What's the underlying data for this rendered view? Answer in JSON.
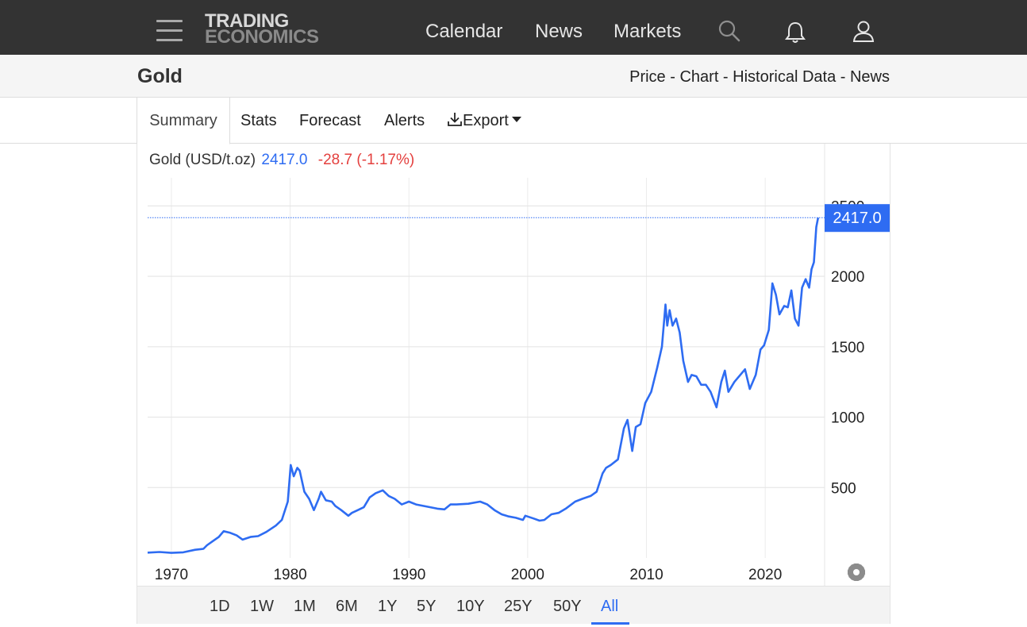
{
  "header": {
    "logo_line1": "TRADING",
    "logo_line2": "ECONOMICS",
    "nav": [
      "Calendar",
      "News",
      "Markets"
    ],
    "icons": [
      "search-icon",
      "bell-icon",
      "user-icon"
    ]
  },
  "titlebar": {
    "title": "Gold",
    "breadcrumbs": [
      "Price",
      "Chart",
      "Historical Data",
      "News"
    ],
    "separator": " - "
  },
  "tabs": [
    "Summary",
    "Stats",
    "Forecast",
    "Alerts",
    "Export"
  ],
  "legend": {
    "name": "Gold (USD/t.oz)",
    "price": "2417.0",
    "change": "-28.7 (-1.17%)"
  },
  "colors": {
    "line": "#2e6cf2",
    "negative": "#e4403e",
    "topbar": "#333333"
  },
  "range_buttons": [
    "1D",
    "1W",
    "1M",
    "6M",
    "1Y",
    "5Y",
    "10Y",
    "25Y",
    "50Y",
    "All"
  ],
  "range_selected": "All",
  "chart_data": {
    "type": "line",
    "title": "",
    "xlabel": "",
    "ylabel": "",
    "xlim": [
      1968,
      2025
    ],
    "ylim": [
      0,
      2700
    ],
    "xticks": [
      1970,
      1980,
      1990,
      2000,
      2010,
      2020
    ],
    "yticks": [
      500,
      1000,
      1500,
      2000,
      2500
    ],
    "last_value": "2417.0",
    "last_value_number": 2417.0,
    "grid": true,
    "series": [
      {
        "x": [
          1968.0,
          1969.0,
          1970.0,
          1971.0,
          1972.0,
          1972.7,
          1973.0,
          1973.5,
          1974.0,
          1974.4,
          1974.9,
          1975.5,
          1976.0,
          1976.7,
          1977.3,
          1978.0,
          1978.8,
          1979.3,
          1979.8,
          1980.05,
          1980.3,
          1980.6,
          1980.8,
          1981.2,
          1981.6,
          1982.0,
          1982.4,
          1982.6,
          1983.0,
          1983.5,
          1983.8,
          1984.3,
          1984.9,
          1985.2,
          1985.7,
          1986.2,
          1986.7,
          1987.2,
          1987.8,
          1988.3,
          1988.8,
          1989.4,
          1990.0,
          1990.6,
          1991.2,
          1991.8,
          1992.4,
          1993.0,
          1993.5,
          1994.0,
          1995.0,
          1996.0,
          1996.6,
          1997.2,
          1997.8,
          1998.4,
          1999.0,
          1999.6,
          1999.8,
          2000.5,
          2001.0,
          2001.4,
          2002.0,
          2002.6,
          2003.2,
          2004.0,
          2004.6,
          2005.3,
          2005.8,
          2006.3,
          2006.6,
          2007.0,
          2007.6,
          2008.1,
          2008.4,
          2008.8,
          2009.1,
          2009.5,
          2009.9,
          2010.4,
          2010.9,
          2011.3,
          2011.6,
          2011.75,
          2011.95,
          2012.2,
          2012.5,
          2012.8,
          2013.1,
          2013.5,
          2013.8,
          2014.2,
          2014.6,
          2015.0,
          2015.4,
          2015.9,
          2016.3,
          2016.6,
          2016.9,
          2017.4,
          2017.9,
          2018.3,
          2018.7,
          2019.2,
          2019.6,
          2019.9,
          2020.3,
          2020.6,
          2020.9,
          2021.2,
          2021.6,
          2021.9,
          2022.2,
          2022.5,
          2022.8,
          2023.1,
          2023.4,
          2023.7,
          2023.9,
          2024.1,
          2024.3,
          2024.45
        ],
        "values": [
          38,
          42,
          36,
          40,
          58,
          65,
          90,
          120,
          150,
          190,
          180,
          160,
          130,
          150,
          155,
          185,
          230,
          270,
          400,
          660,
          580,
          640,
          620,
          470,
          420,
          340,
          420,
          470,
          410,
          400,
          370,
          340,
          300,
          320,
          340,
          360,
          430,
          460,
          480,
          440,
          420,
          380,
          400,
          380,
          370,
          360,
          350,
          345,
          380,
          380,
          385,
          400,
          380,
          340,
          310,
          295,
          285,
          270,
          300,
          280,
          265,
          270,
          310,
          320,
          350,
          400,
          420,
          440,
          470,
          600,
          640,
          660,
          700,
          920,
          980,
          760,
          930,
          950,
          1100,
          1180,
          1350,
          1500,
          1800,
          1650,
          1760,
          1650,
          1700,
          1600,
          1400,
          1250,
          1300,
          1290,
          1230,
          1230,
          1180,
          1070,
          1250,
          1330,
          1180,
          1250,
          1300,
          1340,
          1200,
          1300,
          1480,
          1510,
          1620,
          1950,
          1870,
          1730,
          1790,
          1780,
          1900,
          1700,
          1650,
          1920,
          1980,
          1920,
          2050,
          2100,
          2350,
          2417
        ]
      }
    ]
  }
}
